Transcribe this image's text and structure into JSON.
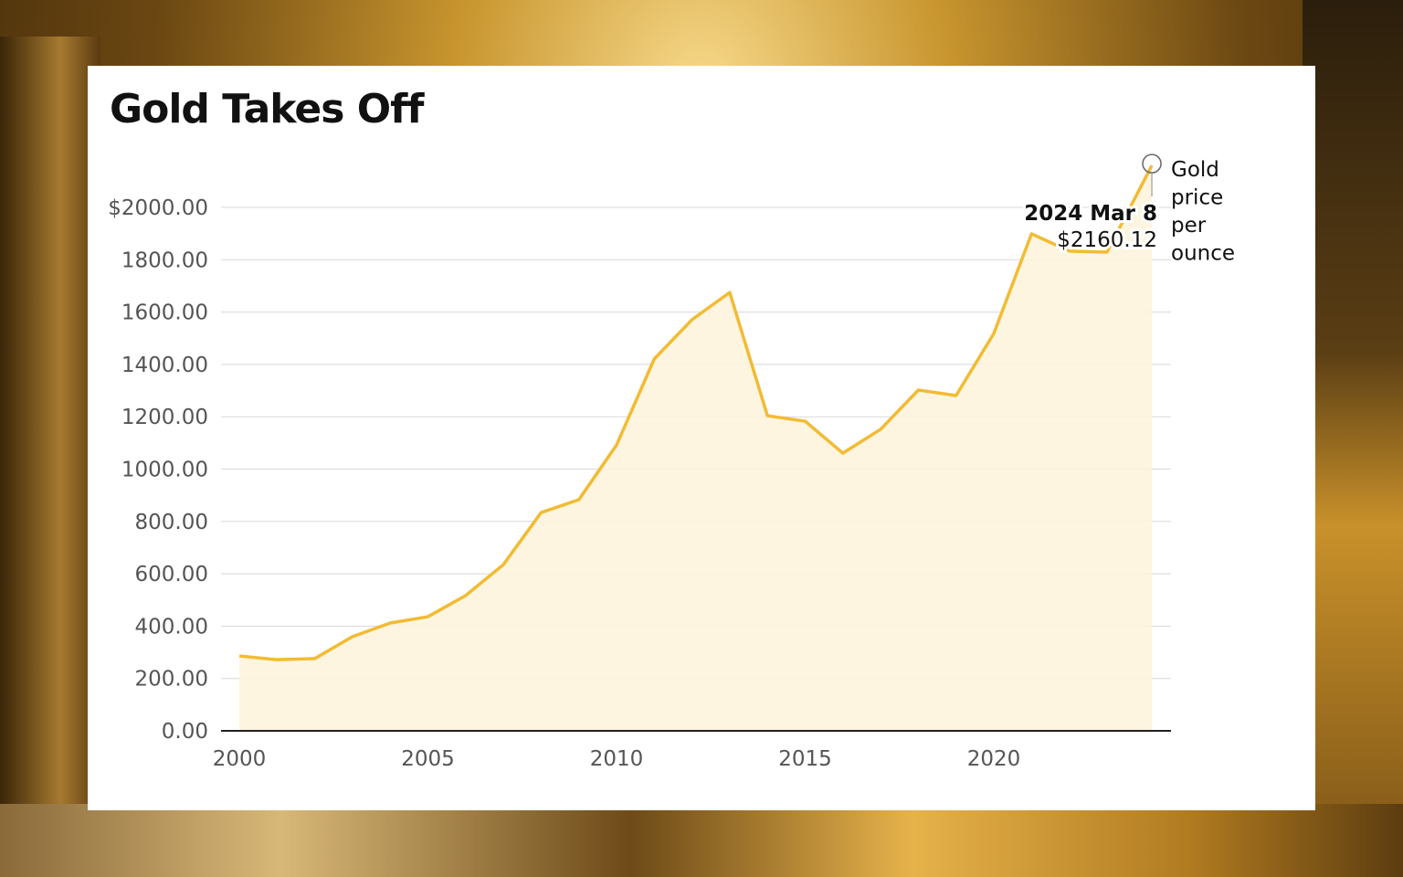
{
  "title": "Gold Takes Off",
  "chart_data": {
    "type": "area",
    "title": "Gold Takes Off",
    "series_label": [
      "Gold",
      "price",
      "per",
      "ounce"
    ],
    "x": [
      2000,
      2001,
      2002,
      2003,
      2004,
      2005,
      2006,
      2007,
      2008,
      2009,
      2010,
      2011,
      2012,
      2013,
      2014,
      2015,
      2016,
      2017,
      2018,
      2019,
      2020,
      2021,
      2022,
      2023,
      2024.19
    ],
    "values": [
      286,
      272,
      276,
      360,
      412,
      436,
      517,
      635,
      834,
      883,
      1092,
      1421,
      1571,
      1675,
      1204,
      1183,
      1061,
      1152,
      1302,
      1281,
      1518,
      1899,
      1833,
      1829,
      2160.12
    ],
    "xlim": [
      2000,
      2024.7
    ],
    "ylim": [
      0,
      2000
    ],
    "x_ticks": [
      "2000",
      "2005",
      "2010",
      "2015",
      "2020"
    ],
    "y_ticks": [
      "0.00",
      "200.00",
      "400.00",
      "600.00",
      "800.00",
      "1000.00",
      "1200.00",
      "1400.00",
      "1600.00",
      "1800.00",
      "$2000.00"
    ],
    "grid": true,
    "annotation": {
      "date": "2024 Mar 8",
      "value": "$2160.12"
    },
    "colors": {
      "line": "#f2bb33",
      "fill": "#fdf4dc",
      "grid": "#d8d8de"
    }
  }
}
